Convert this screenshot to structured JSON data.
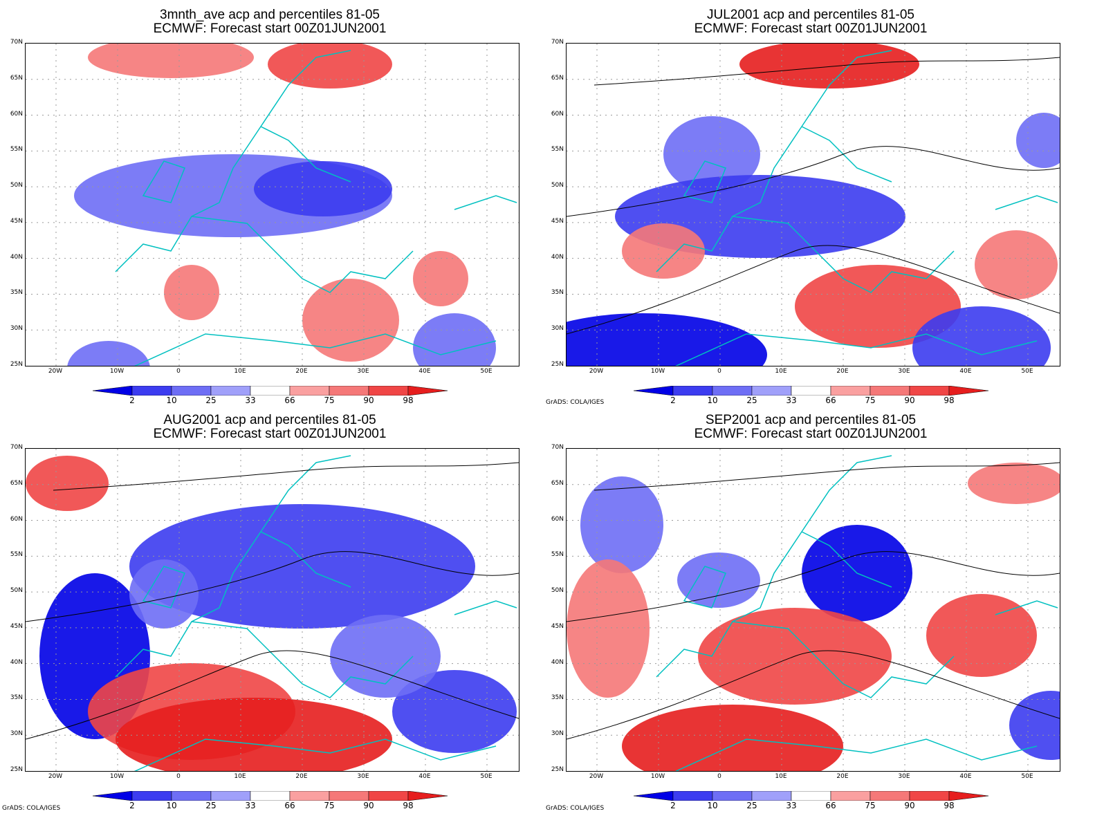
{
  "panels": [
    {
      "title1": "3mnth_ave acp and percentiles 81-05",
      "title2": "ECMWF: Forecast start 00Z01JUN2001"
    },
    {
      "title1": "JUL2001 acp and percentiles 81-05",
      "title2": "ECMWF: Forecast start 00Z01JUN2001"
    },
    {
      "title1": "AUG2001 acp and percentiles 81-05",
      "title2": "ECMWF: Forecast start 00Z01JUN2001"
    },
    {
      "title1": "SEP2001 acp and percentiles 81-05",
      "title2": "ECMWF: Forecast start 00Z01JUN2001"
    }
  ],
  "lat_labels": [
    "70N",
    "65N",
    "60N",
    "55N",
    "50N",
    "45N",
    "40N",
    "35N",
    "30N",
    "25N"
  ],
  "lon_labels": [
    "20W",
    "10W",
    "0",
    "10E",
    "20E",
    "30E",
    "40E",
    "50E"
  ],
  "colorbar": {
    "labels": [
      "2",
      "10",
      "25",
      "33",
      "66",
      "75",
      "90",
      "98"
    ],
    "colors": [
      "#0000e6",
      "#3c3cf0",
      "#6e6ef5",
      "#a0a0fa",
      "#ffffff",
      "#faa0a0",
      "#f57878",
      "#f04646",
      "#e61e1e"
    ]
  },
  "credit": "GrADS: COLA/IGES",
  "colors": {
    "coast": "#00c0c0",
    "contour": "#000000",
    "grid": "#999999"
  }
}
